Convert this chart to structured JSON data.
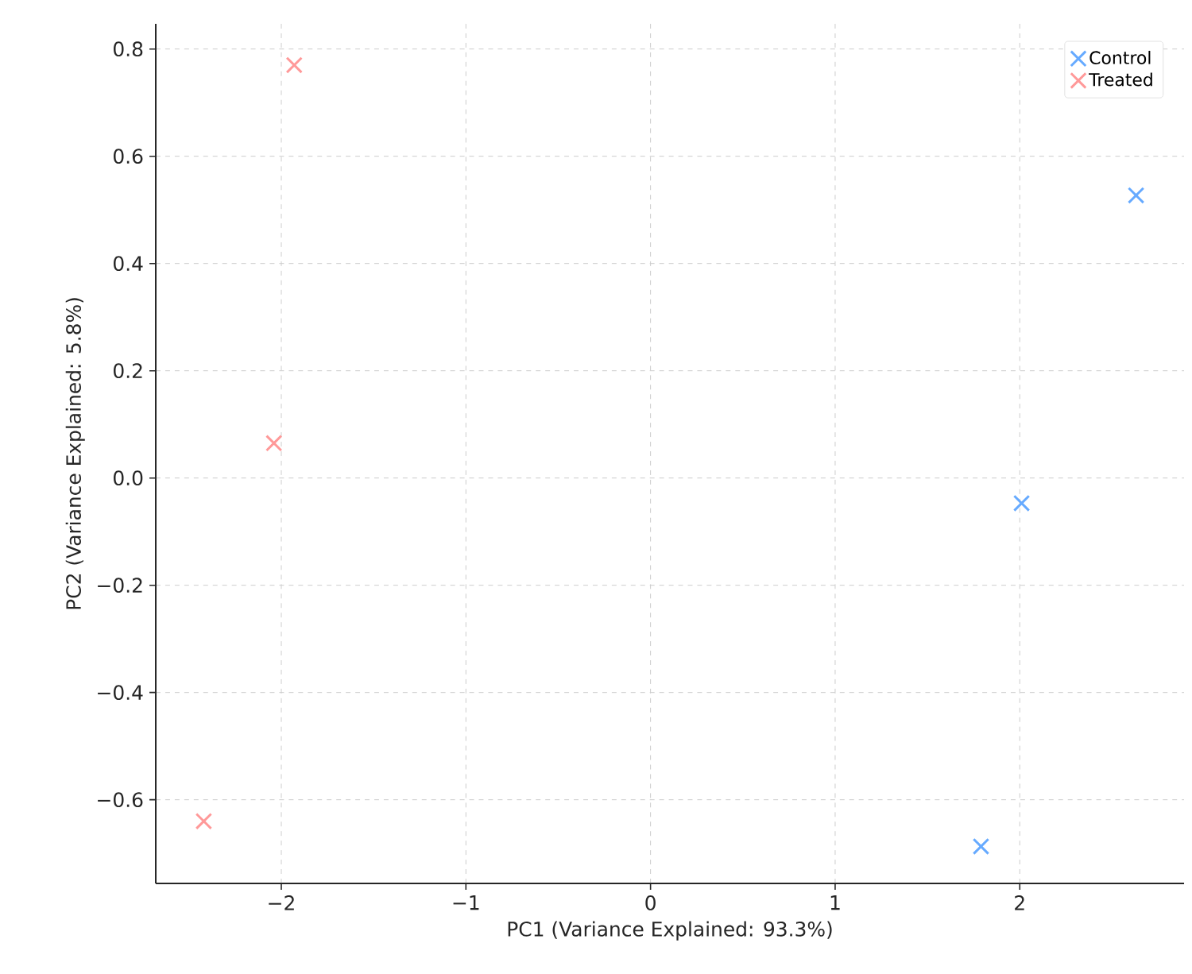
{
  "chart_data": {
    "type": "scatter",
    "xlabel": "PC1 (Variance Explained: 93.3%)",
    "ylabel": "PC2 (Variance Explained: 5.8%)",
    "series": [
      {
        "name": "Control",
        "color": "#66aaff",
        "x": [
          2.63,
          2.01,
          1.79
        ],
        "values": [
          0.527,
          -0.047,
          -0.687
        ]
      },
      {
        "name": "Treated",
        "color": "#ff9999",
        "x": [
          -1.93,
          -2.04,
          -2.42
        ],
        "values": [
          0.77,
          0.065,
          -0.64
        ]
      }
    ],
    "xlim": [
      -2.68,
      2.89
    ],
    "ylim": [
      -0.756,
      0.847
    ],
    "xticks": [
      {
        "value": -2,
        "label": "−2"
      },
      {
        "value": -1,
        "label": "−1"
      },
      {
        "value": 0,
        "label": "0"
      },
      {
        "value": 1,
        "label": "1"
      },
      {
        "value": 2,
        "label": "2"
      }
    ],
    "yticks": [
      {
        "value": -0.6,
        "label": "−0.6"
      },
      {
        "value": -0.4,
        "label": "−0.4"
      },
      {
        "value": -0.2,
        "label": "−0.2"
      },
      {
        "value": 0,
        "label": "0.0"
      },
      {
        "value": 0.2,
        "label": "0.2"
      },
      {
        "value": 0.4,
        "label": "0.4"
      },
      {
        "value": 0.6,
        "label": "0.6"
      },
      {
        "value": 0.8,
        "label": "0.8"
      }
    ],
    "grid": true,
    "legend": "top right",
    "marker": "cross"
  }
}
